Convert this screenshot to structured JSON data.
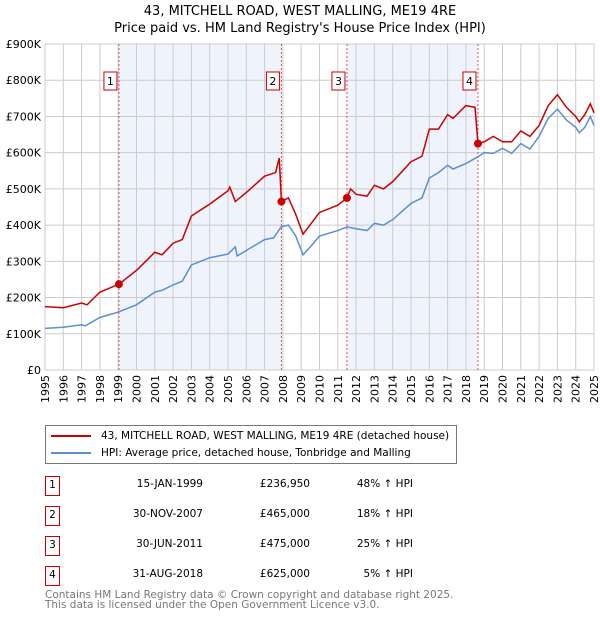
{
  "chart_data": {
    "type": "line",
    "title": "43, MITCHELL ROAD, WEST MALLING, ME19 4RE",
    "subtitle": "Price paid vs. HM Land Registry's House Price Index (HPI)",
    "ylim": [
      0,
      900000
    ],
    "xlim": [
      1995,
      2025
    ],
    "y_ticks": [
      "£0",
      "£100K",
      "£200K",
      "£300K",
      "£400K",
      "£500K",
      "£600K",
      "£700K",
      "£800K",
      "£900K"
    ],
    "x_ticks": [
      "1995",
      "1996",
      "1997",
      "1998",
      "1999",
      "2000",
      "2001",
      "2002",
      "2003",
      "2004",
      "2005",
      "2006",
      "2007",
      "2008",
      "2009",
      "2010",
      "2011",
      "2012",
      "2013",
      "2014",
      "2015",
      "2016",
      "2017",
      "2018",
      "2019",
      "2020",
      "2021",
      "2022",
      "2023",
      "2024",
      "2025"
    ],
    "grid": true,
    "series": [
      {
        "name": "43, MITCHELL ROAD, WEST MALLING, ME19 4RE (detached house)",
        "color": "#cc0000",
        "points": [
          [
            1995,
            175
          ],
          [
            1996,
            172
          ],
          [
            1997,
            185
          ],
          [
            1997.3,
            180
          ],
          [
            1998,
            215
          ],
          [
            1999.04,
            237
          ],
          [
            2000,
            275
          ],
          [
            2001,
            325
          ],
          [
            2001.4,
            318
          ],
          [
            2002,
            350
          ],
          [
            2002.5,
            360
          ],
          [
            2003,
            425
          ],
          [
            2004,
            458
          ],
          [
            2005,
            495
          ],
          [
            2005.1,
            505
          ],
          [
            2005.4,
            465
          ],
          [
            2006,
            490
          ],
          [
            2007,
            535
          ],
          [
            2007.6,
            545
          ],
          [
            2007.8,
            585
          ],
          [
            2007.92,
            465
          ],
          [
            2008.3,
            475
          ],
          [
            2008.7,
            430
          ],
          [
            2009.1,
            375
          ],
          [
            2010,
            435
          ],
          [
            2011,
            455
          ],
          [
            2011.5,
            475
          ],
          [
            2011.7,
            500
          ],
          [
            2012,
            485
          ],
          [
            2012.6,
            480
          ],
          [
            2013,
            510
          ],
          [
            2013.5,
            500
          ],
          [
            2014,
            520
          ],
          [
            2015,
            575
          ],
          [
            2015.6,
            590
          ],
          [
            2016,
            665
          ],
          [
            2016.5,
            665
          ],
          [
            2017,
            705
          ],
          [
            2017.3,
            695
          ],
          [
            2018,
            730
          ],
          [
            2018.5,
            725
          ],
          [
            2018.66,
            625
          ],
          [
            2019,
            630
          ],
          [
            2019.5,
            645
          ],
          [
            2020,
            630
          ],
          [
            2020.5,
            630
          ],
          [
            2021,
            660
          ],
          [
            2021.5,
            645
          ],
          [
            2022,
            675
          ],
          [
            2022.5,
            730
          ],
          [
            2023,
            760
          ],
          [
            2023.5,
            725
          ],
          [
            2024,
            700
          ],
          [
            2024.2,
            685
          ],
          [
            2024.5,
            705
          ],
          [
            2024.8,
            735
          ],
          [
            2025,
            710
          ]
        ]
      },
      {
        "name": "HPI: Average price, detached house, Tonbridge and Malling",
        "color": "#5b8fd0",
        "points": [
          [
            1995,
            115
          ],
          [
            1996,
            118
          ],
          [
            1997,
            125
          ],
          [
            1997.2,
            122
          ],
          [
            1998,
            145
          ],
          [
            1999,
            160
          ],
          [
            2000,
            180
          ],
          [
            2001,
            215
          ],
          [
            2001.4,
            220
          ],
          [
            2002,
            235
          ],
          [
            2002.5,
            245
          ],
          [
            2003,
            290
          ],
          [
            2004,
            310
          ],
          [
            2005,
            320
          ],
          [
            2005.4,
            340
          ],
          [
            2005.5,
            315
          ],
          [
            2006,
            330
          ],
          [
            2007,
            360
          ],
          [
            2007.5,
            365
          ],
          [
            2007.9,
            395
          ],
          [
            2008.3,
            400
          ],
          [
            2008.7,
            370
          ],
          [
            2009.1,
            318
          ],
          [
            2009.5,
            340
          ],
          [
            2010,
            370
          ],
          [
            2011,
            385
          ],
          [
            2011.5,
            395
          ],
          [
            2012,
            390
          ],
          [
            2012.6,
            385
          ],
          [
            2013,
            405
          ],
          [
            2013.5,
            400
          ],
          [
            2014,
            415
          ],
          [
            2015,
            460
          ],
          [
            2015.6,
            475
          ],
          [
            2016,
            530
          ],
          [
            2016.5,
            545
          ],
          [
            2017,
            565
          ],
          [
            2017.3,
            555
          ],
          [
            2018,
            570
          ],
          [
            2018.7,
            590
          ],
          [
            2019,
            600
          ],
          [
            2019.5,
            598
          ],
          [
            2020,
            612
          ],
          [
            2020.5,
            598
          ],
          [
            2021,
            625
          ],
          [
            2021.5,
            610
          ],
          [
            2022,
            645
          ],
          [
            2022.5,
            695
          ],
          [
            2023,
            720
          ],
          [
            2023.5,
            690
          ],
          [
            2024,
            670
          ],
          [
            2024.2,
            655
          ],
          [
            2024.5,
            670
          ],
          [
            2024.8,
            700
          ],
          [
            2025,
            675
          ]
        ]
      }
    ],
    "sales": [
      {
        "label": "1",
        "x": 1999.04,
        "value": 236950
      },
      {
        "label": "2",
        "x": 2007.92,
        "value": 465000
      },
      {
        "label": "3",
        "x": 2011.5,
        "value": 475000
      },
      {
        "label": "4",
        "x": 2018.66,
        "value": 625000
      }
    ],
    "value_units": "thousands GBP"
  },
  "legend": {
    "red": "43, MITCHELL ROAD, WEST MALLING, ME19 4RE (detached house)",
    "blue": "HPI: Average price, detached house, Tonbridge and Malling"
  },
  "sales_table": [
    {
      "n": "1",
      "date": "15-JAN-1999",
      "price": "£236,950",
      "hpi": "48% ↑ HPI"
    },
    {
      "n": "2",
      "date": "30-NOV-2007",
      "price": "£465,000",
      "hpi": "18% ↑ HPI"
    },
    {
      "n": "3",
      "date": "30-JUN-2011",
      "price": "£475,000",
      "hpi": "25% ↑ HPI"
    },
    {
      "n": "4",
      "date": "31-AUG-2018",
      "price": "£625,000",
      "hpi": "5% ↑ HPI"
    }
  ],
  "footer": {
    "line1": "Contains HM Land Registry data © Crown copyright and database right 2025.",
    "line2": "This data is licensed under the Open Government Licence v3.0."
  }
}
